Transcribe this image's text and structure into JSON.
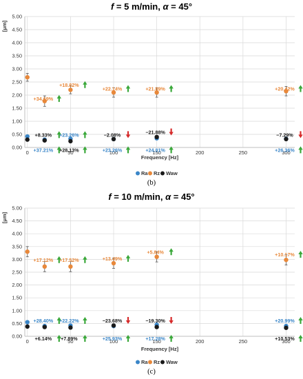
{
  "chart_data": [
    {
      "type": "scatter",
      "title": "f = 5 m/min, α = 45°",
      "title_parts": [
        "f",
        " = 5 m/min, ",
        "α",
        " = 45°"
      ],
      "ylabel": "[μm]",
      "xlabel": "Frequency [Hz]",
      "caption": "(b)",
      "x_ticks": [
        "0",
        "50",
        "100",
        "150",
        "200",
        "250",
        "300"
      ],
      "y_ticks": [
        "0.00",
        "0.50",
        "1.00",
        "1.50",
        "2.00",
        "2.50",
        "3.00",
        "3.50",
        "4.00",
        "4.50",
        "5.00"
      ],
      "xlim": [
        -3,
        310
      ],
      "ylim": [
        0,
        5
      ],
      "grid": true,
      "legend_position": "bottom",
      "series": [
        {
          "name": "Ra",
          "color": "#3a86c8",
          "points": [
            [
              0,
              0.42
            ],
            [
              20,
              0.3
            ],
            [
              50,
              0.33
            ],
            [
              100,
              0.32
            ],
            [
              150,
              0.35
            ],
            [
              300,
              0.33
            ]
          ]
        },
        {
          "name": "Rz",
          "color": "#e8883a",
          "points": [
            [
              0,
              2.68,
              0.15
            ],
            [
              20,
              1.77,
              0.2
            ],
            [
              50,
              2.2,
              0.15
            ],
            [
              100,
              2.1,
              0.18
            ],
            [
              150,
              2.1,
              0.18
            ],
            [
              300,
              2.15,
              0.18
            ]
          ]
        },
        {
          "name": "Waw",
          "color": "#1a1a1a",
          "points": [
            [
              0,
              0.3
            ],
            [
              20,
              0.27
            ],
            [
              50,
              0.24
            ],
            [
              100,
              0.32
            ],
            [
              150,
              0.4
            ],
            [
              300,
              0.32
            ]
          ]
        }
      ],
      "annotations": [
        {
          "text": "+34.69%",
          "x": 20,
          "y": 1.95,
          "color": "#e8883a",
          "arrow": "up"
        },
        {
          "text": "+18.82%",
          "x": 50,
          "y": 2.48,
          "color": "#e8883a",
          "arrow": "up"
        },
        {
          "text": "+22.14%",
          "x": 100,
          "y": 2.33,
          "color": "#e8883a",
          "arrow": "up"
        },
        {
          "text": "+21.89%",
          "x": 150,
          "y": 2.33,
          "color": "#e8883a",
          "arrow": "up"
        },
        {
          "text": "+20.42%",
          "x": 300,
          "y": 2.33,
          "color": "#e8883a",
          "arrow": "up"
        },
        {
          "text": "+8.33%",
          "x": 20,
          "y": 0.57,
          "color": "#1a1a1a",
          "arrow": "up"
        },
        {
          "text": "+23.26%",
          "x": 50,
          "y": 0.57,
          "color": "#3a86c8",
          "arrow": "up"
        },
        {
          "text": "−2.08%",
          "x": 100,
          "y": 0.57,
          "color": "#1a1a1a",
          "arrow": "down"
        },
        {
          "text": "−21.88%",
          "x": 150,
          "y": 0.67,
          "color": "#1a1a1a",
          "arrow": "down"
        },
        {
          "text": "−7.29%",
          "x": 300,
          "y": 0.57,
          "color": "#1a1a1a",
          "arrow": "down"
        },
        {
          "text": "+37.21%",
          "x": 20,
          "y": -0.01,
          "color": "#3a86c8",
          "arrow": "up"
        },
        {
          "text": "+28.13%",
          "x": 50,
          "y": -0.01,
          "color": "#1a1a1a",
          "arrow": "up"
        },
        {
          "text": "+23.26%",
          "x": 100,
          "y": -0.01,
          "color": "#3a86c8",
          "arrow": "up"
        },
        {
          "text": "+24.81%",
          "x": 150,
          "y": -0.01,
          "color": "#3a86c8",
          "arrow": "up"
        },
        {
          "text": "+26.36%",
          "x": 300,
          "y": -0.01,
          "color": "#3a86c8",
          "arrow": "up"
        }
      ]
    },
    {
      "type": "scatter",
      "title": "f = 10 m/min, α = 45°",
      "title_parts": [
        "f",
        " = 10 m/min, ",
        "α",
        " = 45°"
      ],
      "ylabel": "[μm]",
      "xlabel": "Frequency [Hz]",
      "caption": "(c)",
      "x_ticks": [
        "0",
        "50",
        "100",
        "150",
        "200",
        "250",
        "300"
      ],
      "y_ticks": [
        "0.00",
        "0.50",
        "1.00",
        "1.50",
        "2.00",
        "2.50",
        "3.00",
        "3.50",
        "4.00",
        "4.50",
        "5.00"
      ],
      "xlim": [
        -3,
        310
      ],
      "ylim": [
        0,
        5
      ],
      "grid": true,
      "legend_position": "bottom",
      "series": [
        {
          "name": "Ra",
          "color": "#3a86c8",
          "points": [
            [
              0,
              0.55
            ],
            [
              20,
              0.4
            ],
            [
              50,
              0.42
            ],
            [
              100,
              0.4
            ],
            [
              150,
              0.45
            ],
            [
              300,
              0.4
            ]
          ]
        },
        {
          "name": "Rz",
          "color": "#e8883a",
          "points": [
            [
              0,
              3.3,
              0.2
            ],
            [
              20,
              2.72,
              0.2
            ],
            [
              50,
              2.72,
              0.2
            ],
            [
              100,
              2.85,
              0.2
            ],
            [
              150,
              3.1,
              0.2
            ],
            [
              300,
              2.98,
              0.2
            ]
          ]
        },
        {
          "name": "Waw",
          "color": "#1a1a1a",
          "points": [
            [
              0,
              0.38
            ],
            [
              20,
              0.36
            ],
            [
              50,
              0.34
            ],
            [
              100,
              0.42
            ],
            [
              150,
              0.36
            ],
            [
              300,
              0.33
            ]
          ]
        }
      ],
      "annotations": [
        {
          "text": "+17.12%",
          "x": 20,
          "y": 3.07,
          "color": "#e8883a",
          "arrow": "up"
        },
        {
          "text": "+17.52%",
          "x": 50,
          "y": 3.07,
          "color": "#e8883a",
          "arrow": "up"
        },
        {
          "text": "+13.49%",
          "x": 100,
          "y": 3.12,
          "color": "#e8883a",
          "arrow": "up"
        },
        {
          "text": "+5.84%",
          "x": 150,
          "y": 3.38,
          "color": "#e8883a",
          "arrow": "up"
        },
        {
          "text": "+10.17%",
          "x": 300,
          "y": 3.28,
          "color": "#e8883a",
          "arrow": "up"
        },
        {
          "text": "+28.40%",
          "x": 20,
          "y": 0.7,
          "color": "#3a86c8",
          "arrow": "up"
        },
        {
          "text": "+22.22%",
          "x": 50,
          "y": 0.7,
          "color": "#3a86c8",
          "arrow": "up"
        },
        {
          "text": "−23.68%",
          "x": 100,
          "y": 0.7,
          "color": "#1a1a1a",
          "arrow": "down"
        },
        {
          "text": "−19.30%",
          "x": 150,
          "y": 0.7,
          "color": "#1a1a1a",
          "arrow": "down"
        },
        {
          "text": "+20.99%",
          "x": 300,
          "y": 0.7,
          "color": "#3a86c8",
          "arrow": "up"
        },
        {
          "text": "+6.14%",
          "x": 20,
          "y": 0.0,
          "color": "#1a1a1a",
          "arrow": "up"
        },
        {
          "text": "+7.89%",
          "x": 50,
          "y": 0.0,
          "color": "#1a1a1a",
          "arrow": "up"
        },
        {
          "text": "+25.93%",
          "x": 100,
          "y": 0.0,
          "color": "#3a86c8",
          "arrow": "up"
        },
        {
          "text": "+17.28%",
          "x": 150,
          "y": 0.0,
          "color": "#3a86c8",
          "arrow": "up"
        },
        {
          "text": "+10.53%",
          "x": 300,
          "y": 0.0,
          "color": "#1a1a1a",
          "arrow": "up"
        }
      ]
    }
  ],
  "colors": {
    "up_arrow": "#3aa83a",
    "down_arrow": "#d62a2a",
    "grid": "#d9d9d9",
    "axis": "#bfbfbf"
  }
}
